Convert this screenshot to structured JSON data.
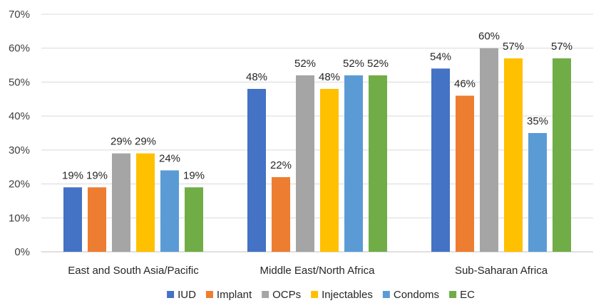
{
  "chart_data": {
    "type": "bar",
    "title": "",
    "xlabel": "",
    "ylabel": "",
    "ylim": [
      0,
      70
    ],
    "y_ticks": [
      "0%",
      "10%",
      "20%",
      "30%",
      "40%",
      "50%",
      "60%",
      "70%"
    ],
    "y_tick_values": [
      0,
      10,
      20,
      30,
      40,
      50,
      60,
      70
    ],
    "grid": true,
    "legend_position": "bottom",
    "categories": [
      "East and South Asia/Pacific",
      "Middle East/North Africa",
      "Sub-Saharan Africa"
    ],
    "series": [
      {
        "name": "IUD",
        "color": "#4472c4",
        "values": [
          19,
          48,
          54
        ],
        "labels": [
          "19%",
          "48%",
          "54%"
        ]
      },
      {
        "name": "Implant",
        "color": "#ed7d31",
        "values": [
          19,
          22,
          46
        ],
        "labels": [
          "19%",
          "22%",
          "46%"
        ]
      },
      {
        "name": "OCPs",
        "color": "#a5a5a5",
        "values": [
          29,
          52,
          60
        ],
        "labels": [
          "29%",
          "52%",
          "60%"
        ]
      },
      {
        "name": "Injectables",
        "color": "#ffc000",
        "values": [
          29,
          48,
          57
        ],
        "labels": [
          "29%",
          "48%",
          "57%"
        ]
      },
      {
        "name": "Condoms",
        "color": "#5b9bd5",
        "values": [
          24,
          52,
          35
        ],
        "labels": [
          "24%",
          "52%",
          "35%"
        ]
      },
      {
        "name": "EC",
        "color": "#70ad47",
        "values": [
          19,
          52,
          57
        ],
        "labels": [
          "19%",
          "52%",
          "57%"
        ]
      }
    ]
  }
}
